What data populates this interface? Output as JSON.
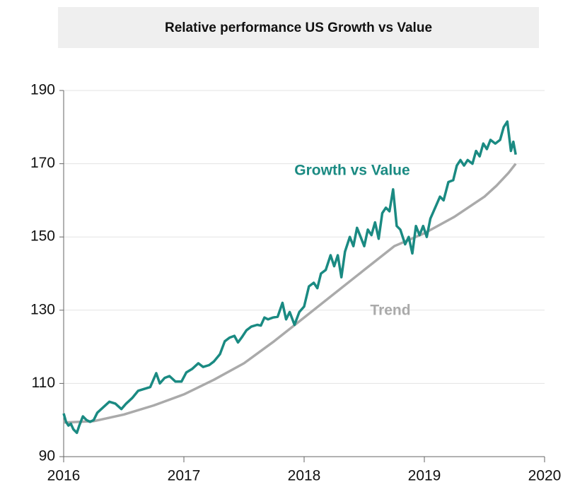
{
  "chart_data": {
    "type": "line",
    "title": "Relative performance US Growth vs Value",
    "annotations": [
      "Growth vs Value",
      "Trend"
    ],
    "xlim": [
      2016,
      2020
    ],
    "xticks": [
      2016,
      2017,
      2018,
      2019,
      2020
    ],
    "ylim": [
      90,
      190
    ],
    "yticks": [
      90,
      110,
      130,
      150,
      170,
      190
    ],
    "grid": true,
    "series": [
      {
        "name": "Growth vs Value",
        "color": "#1a8a82",
        "x": [
          2016.0,
          2016.02,
          2016.04,
          2016.06,
          2016.08,
          2016.11,
          2016.13,
          2016.16,
          2016.19,
          2016.22,
          2016.25,
          2016.28,
          2016.33,
          2016.38,
          2016.43,
          2016.48,
          2016.52,
          2016.57,
          2016.62,
          2016.67,
          2016.72,
          2016.77,
          2016.8,
          2016.84,
          2016.88,
          2016.93,
          2016.98,
          2017.02,
          2017.07,
          2017.12,
          2017.16,
          2017.21,
          2017.25,
          2017.3,
          2017.34,
          2017.38,
          2017.42,
          2017.45,
          2017.48,
          2017.52,
          2017.56,
          2017.61,
          2017.64,
          2017.67,
          2017.7,
          2017.74,
          2017.78,
          2017.82,
          2017.85,
          2017.88,
          2017.92,
          2017.96,
          2018.0,
          2018.04,
          2018.08,
          2018.11,
          2018.14,
          2018.18,
          2018.22,
          2018.25,
          2018.28,
          2018.31,
          2018.34,
          2018.38,
          2018.41,
          2018.44,
          2018.47,
          2018.5,
          2018.53,
          2018.56,
          2018.59,
          2018.62,
          2018.65,
          2018.68,
          2018.71,
          2018.74,
          2018.77,
          2018.8,
          2018.84,
          2018.87,
          2018.9,
          2018.93,
          2018.96,
          2018.99,
          2019.02,
          2019.05,
          2019.09,
          2019.13,
          2019.16,
          2019.2,
          2019.24,
          2019.27,
          2019.3,
          2019.33,
          2019.36,
          2019.4,
          2019.43,
          2019.46,
          2019.49,
          2019.52,
          2019.55,
          2019.59,
          2019.63,
          2019.66,
          2019.69,
          2019.72,
          2019.74,
          2019.76
        ],
        "values": [
          101.8,
          99.5,
          98.5,
          99,
          97.5,
          96.5,
          98.5,
          101,
          100,
          99.5,
          100,
          102,
          103.5,
          105,
          104.5,
          103,
          104.5,
          106,
          108,
          108.5,
          109,
          112.8,
          110,
          111.5,
          112,
          110.5,
          110.5,
          113,
          114,
          115.5,
          114.5,
          115,
          116,
          118,
          121.5,
          122.5,
          123,
          121.2,
          122.5,
          124.5,
          125.5,
          126,
          125.8,
          128,
          127.5,
          128,
          128.2,
          132,
          127.5,
          129.5,
          126,
          129.5,
          131,
          136.5,
          137.5,
          136,
          140,
          141,
          145,
          142,
          145,
          139,
          146,
          150,
          147.5,
          152.5,
          150,
          147.5,
          152,
          150.5,
          154,
          149.5,
          156.5,
          158,
          157,
          163,
          153,
          152,
          148,
          150,
          145.5,
          153,
          150.5,
          153,
          150,
          155,
          158,
          161,
          160,
          165,
          165.5,
          169.5,
          171,
          169.5,
          171,
          170,
          173.5,
          172,
          175.5,
          174,
          176.5,
          175.5,
          176.5,
          180,
          181.5,
          173.5,
          176,
          172.5
        ]
      },
      {
        "name": "Trend",
        "color": "#aaaaaa",
        "x": [
          2016.0,
          2016.25,
          2016.5,
          2016.75,
          2017.0,
          2017.25,
          2017.5,
          2017.75,
          2018.0,
          2018.25,
          2018.5,
          2018.75,
          2019.0,
          2019.25,
          2019.5,
          2019.6,
          2019.7,
          2019.76
        ],
        "values": [
          99.3,
          99.7,
          101.5,
          104,
          107,
          111,
          115.5,
          121.5,
          128,
          134.5,
          141,
          147.5,
          151,
          155.5,
          161,
          164,
          167.5,
          170
        ]
      }
    ]
  }
}
